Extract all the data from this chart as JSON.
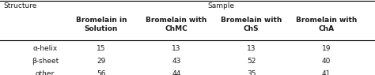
{
  "title_left": "Structure",
  "title_right": "Sample",
  "col_headers": [
    "Bromelain in\nSolution",
    "Bromelain with\nChMC",
    "Bromelain with\nChS",
    "Bromelain with\nChA"
  ],
  "row_labels": [
    "α-helix",
    "β-sheet",
    "other"
  ],
  "data": [
    [
      15,
      13,
      13,
      19
    ],
    [
      29,
      43,
      52,
      40
    ],
    [
      56,
      44,
      35,
      41
    ]
  ],
  "background_color": "#ffffff",
  "text_color": "#1a1a1a",
  "fontsize": 6.5
}
